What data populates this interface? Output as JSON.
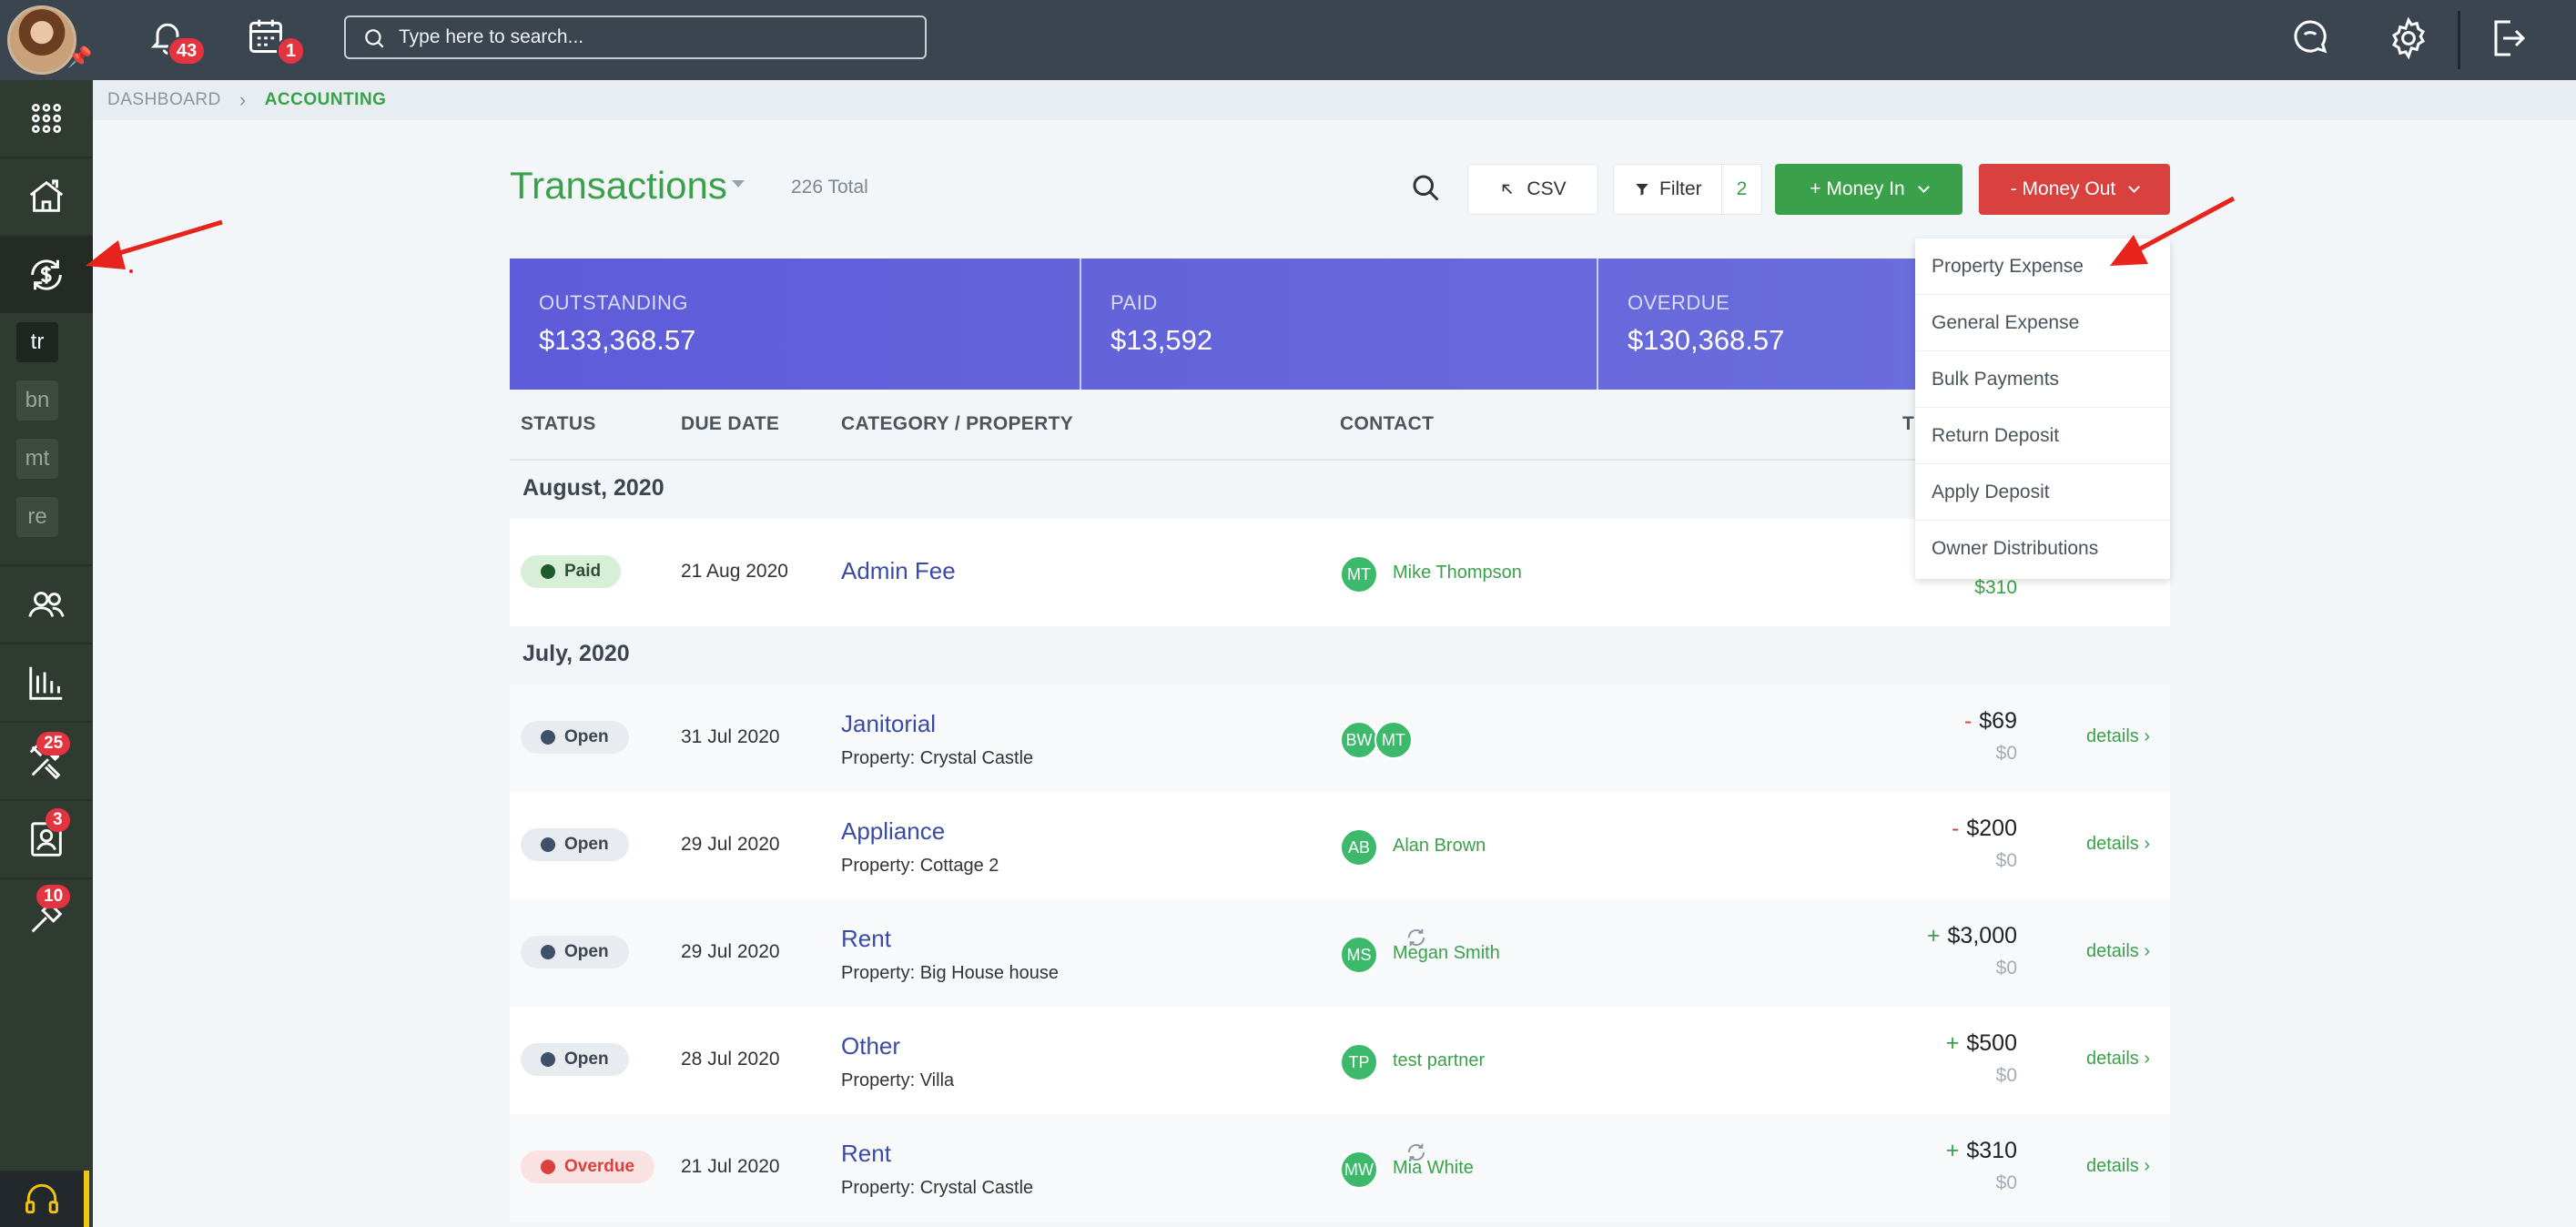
{
  "header": {
    "search_placeholder": "Type here to search...",
    "notifications_count": "43",
    "calendar_count": "1"
  },
  "sidebar": {
    "sub_items": [
      "tr",
      "bn",
      "mt",
      "re"
    ],
    "badges": {
      "maintenance": "25",
      "tenants": "3",
      "tools": "10"
    }
  },
  "breadcrumb": {
    "root": "DASHBOARD",
    "current": "ACCOUNTING"
  },
  "page": {
    "title": "Transactions",
    "total": "226 Total",
    "csv_label": "CSV",
    "filter_label": "Filter",
    "filter_count": "2",
    "money_in_label": "+ Money In",
    "money_out_label": "- Money Out"
  },
  "summary": {
    "outstanding_label": "OUTSTANDING",
    "outstanding_value": "$133,368.57",
    "paid_label": "PAID",
    "paid_value": "$13,592",
    "overdue_label": "OVERDUE",
    "overdue_value": "$130,368.57"
  },
  "table": {
    "headers": [
      "STATUS",
      "DUE DATE",
      "CATEGORY / PROPERTY",
      "CONTACT",
      "T"
    ],
    "groups": [
      "August, 2020",
      "July, 2020"
    ],
    "rows": [
      {
        "status": "Paid",
        "due": "21 Aug 2020",
        "category": "Admin Fee",
        "property": "",
        "contacts": [
          "MT"
        ],
        "contact_name": "Mike Thompson",
        "sign": "",
        "amount": "",
        "amount2": "$310",
        "details": ""
      },
      {
        "status": "Open",
        "due": "31 Jul 2020",
        "category": "Janitorial",
        "property": "Property: Crystal Castle",
        "contacts": [
          "BW",
          "MT"
        ],
        "contact_name": "",
        "sign": "-",
        "amount": "$69",
        "amount2": "$0",
        "details": "details ›"
      },
      {
        "status": "Open",
        "due": "29 Jul 2020",
        "category": "Appliance",
        "property": "Property: Cottage 2",
        "contacts": [
          "AB"
        ],
        "contact_name": "Alan Brown",
        "sign": "-",
        "amount": "$200",
        "amount2": "$0",
        "details": "details ›"
      },
      {
        "status": "Open",
        "due": "29 Jul 2020",
        "category": "Rent",
        "property": "Property: Big House house",
        "contacts": [
          "MS"
        ],
        "contact_name": "Megan Smith",
        "sign": "+",
        "amount": "$3,000",
        "amount2": "$0",
        "details": "details ›"
      },
      {
        "status": "Open",
        "due": "28 Jul 2020",
        "category": "Other",
        "property": "Property: Villa",
        "contacts": [
          "TP"
        ],
        "contact_name": "test partner",
        "sign": "+",
        "amount": "$500",
        "amount2": "$0",
        "details": "details ›"
      },
      {
        "status": "Overdue",
        "due": "21 Jul 2020",
        "category": "Rent",
        "property": "Property: Crystal Castle",
        "contacts": [
          "MW"
        ],
        "contact_name": "Mia White",
        "sign": "+",
        "amount": "$310",
        "amount2": "$0",
        "details": "details ›"
      }
    ]
  },
  "dropdown": {
    "items": [
      "Property Expense",
      "General Expense",
      "Bulk Payments",
      "Return Deposit",
      "Apply Deposit",
      "Owner Distributions"
    ]
  },
  "colors": {
    "accent_green": "#3aa14a",
    "danger_red": "#d9413e",
    "summary_purple": "#5e5cd9",
    "topbar": "#3b4550",
    "sidebar": "#2f3a30"
  },
  "icons": [
    "bell-icon",
    "calendar-icon",
    "search-icon",
    "chat-icon",
    "gear-icon",
    "logout-icon",
    "apps-grid-icon",
    "home-icon",
    "money-cycle-icon",
    "users-icon",
    "reports-icon",
    "tools-icon",
    "contacts-icon",
    "wrench-icon",
    "headset-icon",
    "recurring-icon"
  ]
}
